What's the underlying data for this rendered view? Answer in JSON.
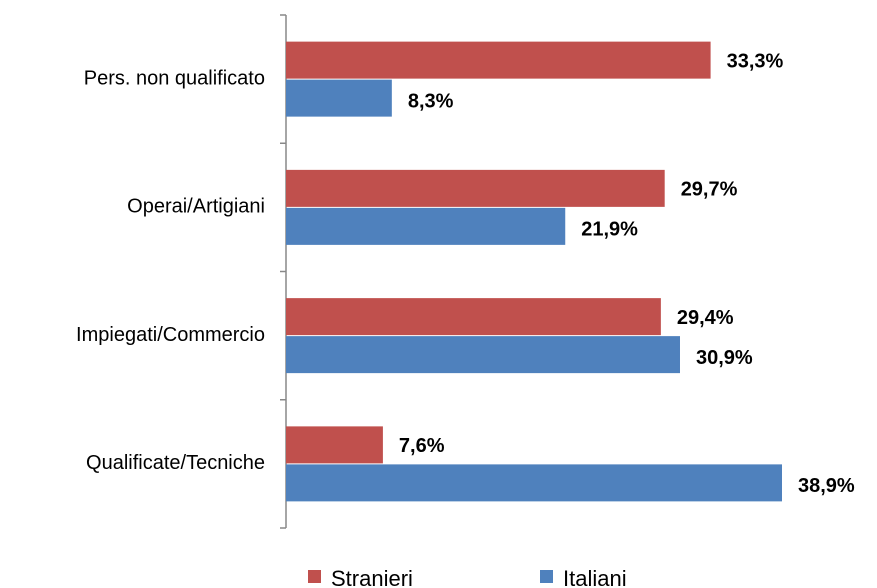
{
  "chart_data": {
    "type": "hbar",
    "categories": [
      "Pers. non qualificato",
      "Operai/Artigiani",
      "Impiegati/Commercio",
      "Qualificate/Tecniche"
    ],
    "series": [
      {
        "name": "Stranieri",
        "color": "#c0504d",
        "values": [
          33.3,
          29.7,
          29.4,
          7.6
        ],
        "value_labels": [
          "33,3%",
          "29,7%",
          "29,4%",
          "7,6%"
        ]
      },
      {
        "name": "Italiani",
        "color": "#4f81bd",
        "values": [
          8.3,
          21.9,
          30.9,
          38.9
        ],
        "value_labels": [
          "8,3%",
          "21,9%",
          "30,9%",
          "38,9%"
        ]
      }
    ],
    "legend": "bottom"
  }
}
